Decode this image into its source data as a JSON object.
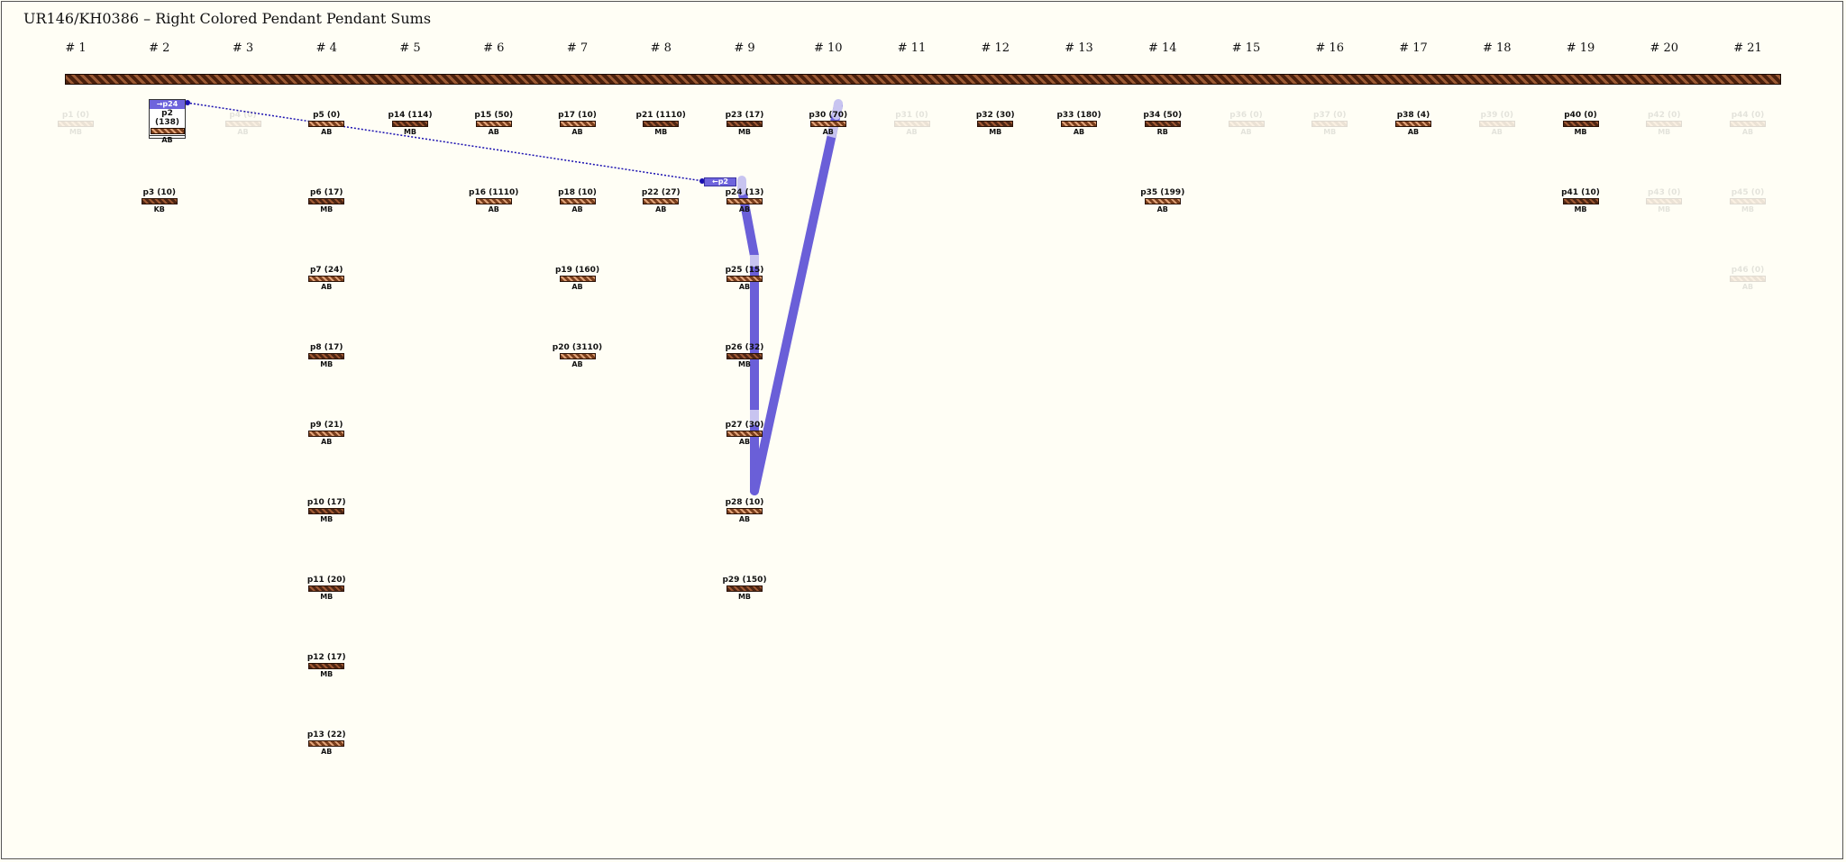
{
  "title": "UR146/KH0386 – Right Colored Pendant Pendant Sums",
  "columns": [
    "# 1",
    "# 2",
    "# 3",
    "# 4",
    "# 5",
    "# 6",
    "# 7",
    "# 8",
    "# 9",
    "# 10",
    "# 11",
    "# 12",
    "# 13",
    "# 14",
    "# 15",
    "# 16",
    "# 17",
    "# 18",
    "# 19",
    "# 20",
    "# 21"
  ],
  "pendants": [
    {
      "id": "p1",
      "label": "p1 (0)",
      "code": "MB",
      "col": 1,
      "row": 0,
      "color": "medium",
      "dim": true
    },
    {
      "id": "p4",
      "label": "p4 (0)",
      "code": "AB",
      "col": 3,
      "row": 0,
      "color": "medium",
      "dim": true
    },
    {
      "id": "p5",
      "label": "p5 (0)",
      "code": "AB",
      "col": 4,
      "row": 0,
      "color": "medium",
      "dim": false
    },
    {
      "id": "p14",
      "label": "p14 (114)",
      "code": "MB",
      "col": 5,
      "row": 0,
      "color": "dark",
      "dim": false
    },
    {
      "id": "p15",
      "label": "p15 (50)",
      "code": "AB",
      "col": 6,
      "row": 0,
      "color": "medium",
      "dim": false
    },
    {
      "id": "p17",
      "label": "p17 (10)",
      "code": "AB",
      "col": 7,
      "row": 0,
      "color": "medium",
      "dim": false
    },
    {
      "id": "p21",
      "label": "p21 (1110)",
      "code": "MB",
      "col": 8,
      "row": 0,
      "color": "dark",
      "dim": false
    },
    {
      "id": "p23",
      "label": "p23 (17)",
      "code": "MB",
      "col": 9,
      "row": 0,
      "color": "dark",
      "dim": false
    },
    {
      "id": "p30",
      "label": "p30 (70)",
      "code": "AB",
      "col": 10,
      "row": 0,
      "color": "medium",
      "dim": false
    },
    {
      "id": "p31",
      "label": "p31 (0)",
      "code": "AB",
      "col": 11,
      "row": 0,
      "color": "medium",
      "dim": true
    },
    {
      "id": "p32",
      "label": "p32 (30)",
      "code": "MB",
      "col": 12,
      "row": 0,
      "color": "dark",
      "dim": false
    },
    {
      "id": "p33",
      "label": "p33 (180)",
      "code": "AB",
      "col": 13,
      "row": 0,
      "color": "medium",
      "dim": false
    },
    {
      "id": "p34",
      "label": "p34 (50)",
      "code": "RB",
      "col": 14,
      "row": 0,
      "color": "dark",
      "dim": false
    },
    {
      "id": "p36",
      "label": "p36 (0)",
      "code": "AB",
      "col": 15,
      "row": 0,
      "color": "medium",
      "dim": true
    },
    {
      "id": "p37",
      "label": "p37 (0)",
      "code": "MB",
      "col": 16,
      "row": 0,
      "color": "medium",
      "dim": true
    },
    {
      "id": "p38",
      "label": "p38 (4)",
      "code": "AB",
      "col": 17,
      "row": 0,
      "color": "medium",
      "dim": false
    },
    {
      "id": "p39",
      "label": "p39 (0)",
      "code": "AB",
      "col": 18,
      "row": 0,
      "color": "medium",
      "dim": true
    },
    {
      "id": "p40",
      "label": "p40 (0)",
      "code": "MB",
      "col": 19,
      "row": 0,
      "color": "dark",
      "dim": false
    },
    {
      "id": "p42",
      "label": "p42 (0)",
      "code": "MB",
      "col": 20,
      "row": 0,
      "color": "medium",
      "dim": true
    },
    {
      "id": "p44",
      "label": "p44 (0)",
      "code": "AB",
      "col": 21,
      "row": 0,
      "color": "medium",
      "dim": true
    },
    {
      "id": "p3",
      "label": "p3 (10)",
      "code": "KB",
      "col": 2,
      "row": 1,
      "color": "dark",
      "dim": false
    },
    {
      "id": "p6",
      "label": "p6 (17)",
      "code": "MB",
      "col": 4,
      "row": 1,
      "color": "dark",
      "dim": false
    },
    {
      "id": "p16",
      "label": "p16 (1110)",
      "code": "AB",
      "col": 6,
      "row": 1,
      "color": "medium",
      "dim": false
    },
    {
      "id": "p18",
      "label": "p18 (10)",
      "code": "AB",
      "col": 7,
      "row": 1,
      "color": "medium",
      "dim": false
    },
    {
      "id": "p22",
      "label": "p22 (27)",
      "code": "AB",
      "col": 8,
      "row": 1,
      "color": "medium",
      "dim": false
    },
    {
      "id": "p24",
      "label": "p24 (13)",
      "code": "AB",
      "col": 9,
      "row": 1,
      "color": "medium",
      "dim": false
    },
    {
      "id": "p35",
      "label": "p35 (199)",
      "code": "AB",
      "col": 14,
      "row": 1,
      "color": "medium",
      "dim": false
    },
    {
      "id": "p41",
      "label": "p41 (10)",
      "code": "MB",
      "col": 19,
      "row": 1,
      "color": "dark",
      "dim": false
    },
    {
      "id": "p43",
      "label": "p43 (0)",
      "code": "MB",
      "col": 20,
      "row": 1,
      "color": "medium",
      "dim": true
    },
    {
      "id": "p45",
      "label": "p45 (0)",
      "code": "MB",
      "col": 21,
      "row": 1,
      "color": "medium",
      "dim": true
    },
    {
      "id": "p7",
      "label": "p7 (24)",
      "code": "AB",
      "col": 4,
      "row": 2,
      "color": "medium",
      "dim": false
    },
    {
      "id": "p19",
      "label": "p19 (160)",
      "code": "AB",
      "col": 7,
      "row": 2,
      "color": "medium",
      "dim": false
    },
    {
      "id": "p25",
      "label": "p25 (15)",
      "code": "AB",
      "col": 9,
      "row": 2,
      "color": "medium",
      "dim": false
    },
    {
      "id": "p46",
      "label": "p46 (0)",
      "code": "AB",
      "col": 21,
      "row": 2,
      "color": "medium",
      "dim": true
    },
    {
      "id": "p8",
      "label": "p8 (17)",
      "code": "MB",
      "col": 4,
      "row": 3,
      "color": "dark",
      "dim": false
    },
    {
      "id": "p20",
      "label": "p20 (3110)",
      "code": "AB",
      "col": 7,
      "row": 3,
      "color": "medium",
      "dim": false
    },
    {
      "id": "p26",
      "label": "p26 (32)",
      "code": "MB",
      "col": 9,
      "row": 3,
      "color": "dark",
      "dim": false
    },
    {
      "id": "p9",
      "label": "p9 (21)",
      "code": "AB",
      "col": 4,
      "row": 4,
      "color": "medium",
      "dim": false
    },
    {
      "id": "p27",
      "label": "p27 (30)",
      "code": "AB",
      "col": 9,
      "row": 4,
      "color": "medium",
      "dim": false
    },
    {
      "id": "p10",
      "label": "p10 (17)",
      "code": "MB",
      "col": 4,
      "row": 5,
      "color": "dark",
      "dim": false
    },
    {
      "id": "p28",
      "label": "p28 (10)",
      "code": "AB",
      "col": 9,
      "row": 5,
      "color": "medium",
      "dim": false
    },
    {
      "id": "p11",
      "label": "p11 (20)",
      "code": "MB",
      "col": 4,
      "row": 6,
      "color": "dark",
      "dim": false
    },
    {
      "id": "p29",
      "label": "p29 (150)",
      "code": "MB",
      "col": 9,
      "row": 6,
      "color": "dark",
      "dim": false
    },
    {
      "id": "p12",
      "label": "p12 (17)",
      "code": "MB",
      "col": 4,
      "row": 7,
      "color": "dark",
      "dim": false
    },
    {
      "id": "p13",
      "label": "p13 (22)",
      "code": "AB",
      "col": 4,
      "row": 8,
      "color": "medium",
      "dim": false
    }
  ],
  "highlight": {
    "p2": {
      "tag": "→p24",
      "label": "p2 (138)",
      "code": "AB",
      "color": "medium"
    },
    "p24_tag": "←p2"
  },
  "colors": {
    "highlight": "#6e64dc",
    "path": "#6a5fd8",
    "path_light": "#c8c4f0",
    "link": "#1a10b0"
  }
}
